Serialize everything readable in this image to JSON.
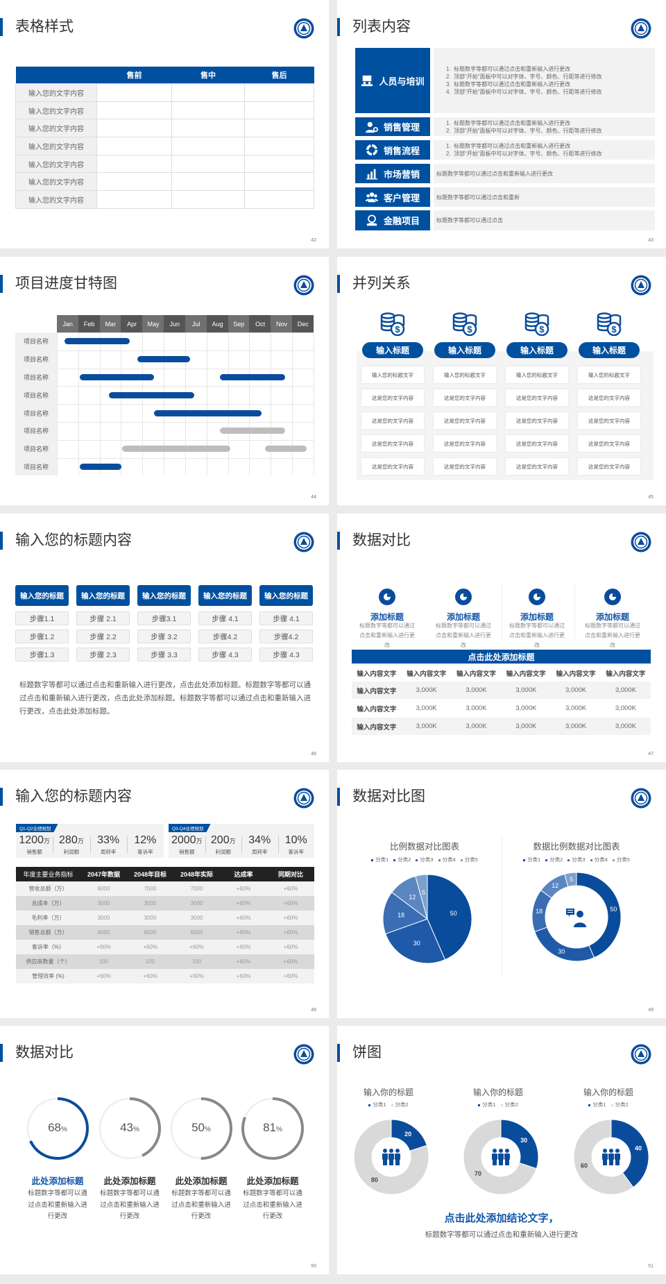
{
  "slides": [
    {
      "title": "表格样式",
      "page": "42"
    },
    {
      "title": "列表内容",
      "page": "43"
    },
    {
      "title": "项目进度甘特图",
      "page": "44"
    },
    {
      "title": "并列关系",
      "page": "45"
    },
    {
      "title": "输入您的标题内容",
      "page": "46"
    },
    {
      "title": "数据对比",
      "page": "47"
    },
    {
      "title": "输入您的标题内容",
      "page": "48"
    },
    {
      "title": "数据对比图",
      "page": "49"
    },
    {
      "title": "数据对比",
      "page": "50"
    },
    {
      "title": "饼图",
      "page": "51"
    }
  ],
  "colors": {
    "brand": "#0050a0",
    "gray_bar": "#bdbdbd",
    "dark_header": "#222222"
  },
  "s42": {
    "headers": [
      "",
      "售前",
      "售中",
      "售后"
    ],
    "rows": [
      "输入您的文字内容",
      "输入您的文字内容",
      "输入您的文字内容",
      "输入您的文字内容",
      "输入您的文字内容",
      "输入您的文字内容",
      "输入您的文字内容"
    ]
  },
  "s43": {
    "items": [
      {
        "label": "人员与培训",
        "icon": "training-icon",
        "lines": [
          "标题数字等都可以通过点击和重新输入进行更改",
          "顶部“开始”面板中可以对字体、字号、颜色、行距等进行修改",
          "标题数字等都可以通过点击和重新输入进行更改",
          "顶部“开始”面板中可以对字体、字号、颜色、行距等进行修改"
        ]
      },
      {
        "label": "销售管理",
        "icon": "user-gear-icon",
        "lines": [
          "标题数字等都可以通过点击和重新输入进行更改",
          "顶部“开始”面板中可以对字体、字号、颜色、行距等进行修改"
        ]
      },
      {
        "label": "销售流程",
        "icon": "cycle-icon",
        "lines": [
          "标题数字等都可以通过点击和重新输入进行更改",
          "顶部“开始”面板中可以对字体、字号、颜色、行距等进行修改"
        ]
      },
      {
        "label": "市场营销",
        "icon": "bar-chart-icon",
        "text": "标题数字等都可以通过点击和重新输入进行更改"
      },
      {
        "label": "客户管理",
        "icon": "users-icon",
        "text": "标题数字等都可以通过点击和重新"
      },
      {
        "label": "金融项目",
        "icon": "finance-hand-icon",
        "text": "标题数字等都可以通过点击"
      }
    ]
  },
  "s44": {
    "months": [
      "Jan",
      "Feb",
      "Mar",
      "Apr",
      "May",
      "Jun",
      "Jul",
      "Aug",
      "Sep",
      "Oct",
      "Nov",
      "Dec"
    ],
    "rows": [
      {
        "label": "项目名称",
        "bars": [
          {
            "start": 0.36,
            "end": 3.42,
            "status": "active"
          }
        ]
      },
      {
        "label": "项目名称",
        "bars": [
          {
            "start": 3.76,
            "end": 6.23,
            "status": "active"
          }
        ]
      },
      {
        "label": "项目名称",
        "bars": [
          {
            "start": 1.06,
            "end": 4.53,
            "status": "active"
          },
          {
            "start": 7.61,
            "end": 10.67,
            "status": "active"
          }
        ]
      },
      {
        "label": "项目名称",
        "bars": [
          {
            "start": 2.42,
            "end": 6.43,
            "status": "active"
          }
        ]
      },
      {
        "label": "项目名称",
        "bars": [
          {
            "start": 4.54,
            "end": 9.58,
            "status": "active"
          }
        ]
      },
      {
        "label": "项目名称",
        "bars": [
          {
            "start": 7.61,
            "end": 10.67,
            "status": "planned"
          }
        ]
      },
      {
        "label": "项目名称",
        "bars": [
          {
            "start": 3.04,
            "end": 8.12,
            "status": "planned"
          },
          {
            "start": 9.73,
            "end": 11.69,
            "status": "planned"
          }
        ]
      },
      {
        "label": "项目名称",
        "bars": [
          {
            "start": 1.06,
            "end": 3.03,
            "status": "active"
          }
        ]
      }
    ]
  },
  "s45": {
    "columns": [
      {
        "title": "输入标题",
        "icon": "coins-dollar-icon",
        "items": [
          "输入您的标题文字",
          "这是您的文字内容",
          "这是您的文字内容",
          "这是您的文字内容",
          "这是您的文字内容"
        ]
      },
      {
        "title": "输入标题",
        "icon": "coins-dollar-icon",
        "items": [
          "输入您的标题文字",
          "这是您的文字内容",
          "这是您的文字内容",
          "这是您的文字内容",
          "这是您的文字内容"
        ]
      },
      {
        "title": "输入标题",
        "icon": "coins-dollar-icon",
        "items": [
          "输入您的标题文字",
          "这是您的文字内容",
          "这是您的文字内容",
          "这是您的文字内容",
          "这是您的文字内容"
        ]
      },
      {
        "title": "输入标题",
        "icon": "coins-dollar-icon",
        "items": [
          "输入您的标题文字",
          "这是您的文字内容",
          "这是您的文字内容",
          "这是您的文字内容",
          "这是您的文字内容"
        ]
      }
    ]
  },
  "s46": {
    "columns": [
      {
        "title": "输入您的标题",
        "steps": [
          "步骤1.1",
          "步骤1.2",
          "步骤1.3"
        ]
      },
      {
        "title": "输入您的标题",
        "steps": [
          "步骤 2.1",
          "步骤 2.2",
          "步骤 2.3"
        ]
      },
      {
        "title": "输入您的标题",
        "steps": [
          "步骤3.1",
          "步骤 3.2",
          "步骤 3.3"
        ]
      },
      {
        "title": "输入您的标题",
        "steps": [
          "步骤 4.1",
          "步骤4.2",
          "步骤 4.3"
        ]
      },
      {
        "title": "输入您的标题",
        "steps": [
          "步骤 4.1",
          "步骤4.2",
          "步骤 4.3"
        ]
      }
    ],
    "paragraph": "标题数字等都可以通过点击和重新输入进行更改，点击此处添加标题。标题数字等都可以通过点击和重新输入进行更改，点击此处添加标题。标题数字等都可以通过点击和重新输入进行更改，点击此处添加标题。"
  },
  "s47": {
    "cards": [
      {
        "title": "添加标题",
        "desc": "标题数字等都可以通过点击和重新输入进行更改"
      },
      {
        "title": "添加标题",
        "desc": "标题数字等都可以通过点击和重新输入进行更改"
      },
      {
        "title": "添加标题",
        "desc": "标题数字等都可以通过点击和重新输入进行更改"
      },
      {
        "title": "添加标题",
        "desc": "标题数字等都可以通过点击和重新输入进行更改"
      }
    ],
    "banner": "点击此处添加标题",
    "headers": [
      "输入内容文字",
      "输入内容文字",
      "输入内容文字",
      "输入内容文字",
      "输入内容文字",
      "输入内容文字"
    ],
    "rows": [
      [
        "输入内容文字",
        "3,000K",
        "3,000K",
        "3,000K",
        "3,000K",
        "3,000K"
      ],
      [
        "输入内容文字",
        "3,000K",
        "3,000K",
        "3,000K",
        "3,000K",
        "3,000K"
      ],
      [
        "输入内容文字",
        "3,000K",
        "3,000K",
        "3,000K",
        "3,000K",
        "3,000K"
      ]
    ]
  },
  "s48": {
    "panels": [
      {
        "tag": "Q1-Q2业绩规划",
        "stats": [
          {
            "value": "1200",
            "unit": "万",
            "label": "销售额"
          },
          {
            "value": "280",
            "unit": "万",
            "label": "利润额"
          },
          {
            "value": "33%",
            "unit": "",
            "label": "周转率"
          },
          {
            "value": "12%",
            "unit": "",
            "label": "客诉率"
          }
        ]
      },
      {
        "tag": "Q3-Q4业绩规划",
        "stats": [
          {
            "value": "2000",
            "unit": "万",
            "label": "销售额"
          },
          {
            "value": "200",
            "unit": "万",
            "label": "利润额"
          },
          {
            "value": "34%",
            "unit": "",
            "label": "周转率"
          },
          {
            "value": "10%",
            "unit": "",
            "label": "客诉率"
          }
        ]
      }
    ],
    "headers": [
      "年度主要业务指标",
      "2047年数据",
      "2048年目标",
      "2048年实际",
      "达成率",
      "同期对比"
    ],
    "rows": [
      [
        "营收总额（万）",
        "6000",
        "7000",
        "7000",
        "+60%",
        "+60%"
      ],
      [
        "总成本（万）",
        "3000",
        "3000",
        "3000",
        "+60%",
        "+60%"
      ],
      [
        "毛利率（万）",
        "3000",
        "3000",
        "3000",
        "+60%",
        "+60%"
      ],
      [
        "销售总额（万）",
        "6000",
        "6000",
        "6000",
        "+60%",
        "+60%"
      ],
      [
        "客诉率（%）",
        "+60%",
        "+60%",
        "+60%",
        "+60%",
        "+60%"
      ],
      [
        "供应商数量（个）",
        "100",
        "100",
        "100",
        "+60%",
        "+60%"
      ],
      [
        "管理效率 (%)",
        "+60%",
        "+60%",
        "+60%",
        "+60%",
        "+60%"
      ]
    ]
  },
  "s50": {
    "rings": [
      {
        "value": 68,
        "unit": "%",
        "title": "此处添加标题",
        "desc": "标题数字等都可以通过点击和重新输入进行更改",
        "color": "#0a4c9c"
      },
      {
        "value": 43,
        "unit": "%",
        "title": "此处添加标题",
        "desc": "标题数字等都可以通过点击和重新输入进行更改",
        "color": "#888888"
      },
      {
        "value": 50,
        "unit": "%",
        "title": "此处添加标题",
        "desc": "标题数字等都可以通过点击和重新输入进行更改",
        "color": "#888888"
      },
      {
        "value": 81,
        "unit": "%",
        "title": "此处添加标题",
        "desc": "标题数字等都可以通过点击和重新输入进行更改",
        "color": "#888888"
      }
    ]
  },
  "s51": {
    "conclusion": "点击此处添加结论文字，",
    "subtitle": "标题数字等都可以通过点击和重新输入进行更改"
  },
  "chart_data": [
    {
      "type": "pie",
      "title": "比例数据对比图表",
      "categories": [
        "分类1",
        "分类2",
        "分类3",
        "分类4",
        "分类5"
      ],
      "values": [
        50,
        30,
        18,
        12,
        5
      ],
      "colors": [
        "#0a4c9c",
        "#1f5aa8",
        "#3a6db3",
        "#5b86c0",
        "#7d9fcd"
      ],
      "legend": "top"
    },
    {
      "type": "donut",
      "title": "数据比例数据对比图表",
      "categories": [
        "分类1",
        "分类2",
        "分类3",
        "分类4",
        "分类5"
      ],
      "values": [
        50,
        30,
        18,
        12,
        5
      ],
      "colors": [
        "#0a4c9c",
        "#1f5aa8",
        "#3a6db3",
        "#5b86c0",
        "#7d9fcd"
      ],
      "legend": "top"
    },
    {
      "type": "donut",
      "title": "输入你的标题",
      "categories": [
        "分类1",
        "分类2"
      ],
      "values": [
        20,
        80
      ],
      "colors": [
        "#0a4c9c",
        "#d9d9d9"
      ],
      "legend": "top"
    },
    {
      "type": "donut",
      "title": "输入你的标题",
      "categories": [
        "分类1",
        "分类2"
      ],
      "values": [
        30,
        70
      ],
      "colors": [
        "#0a4c9c",
        "#d9d9d9"
      ],
      "legend": "top"
    },
    {
      "type": "donut",
      "title": "输入你的标题",
      "categories": [
        "分类1",
        "分类2"
      ],
      "values": [
        40,
        60
      ],
      "colors": [
        "#0a4c9c",
        "#d9d9d9"
      ],
      "legend": "top"
    }
  ]
}
